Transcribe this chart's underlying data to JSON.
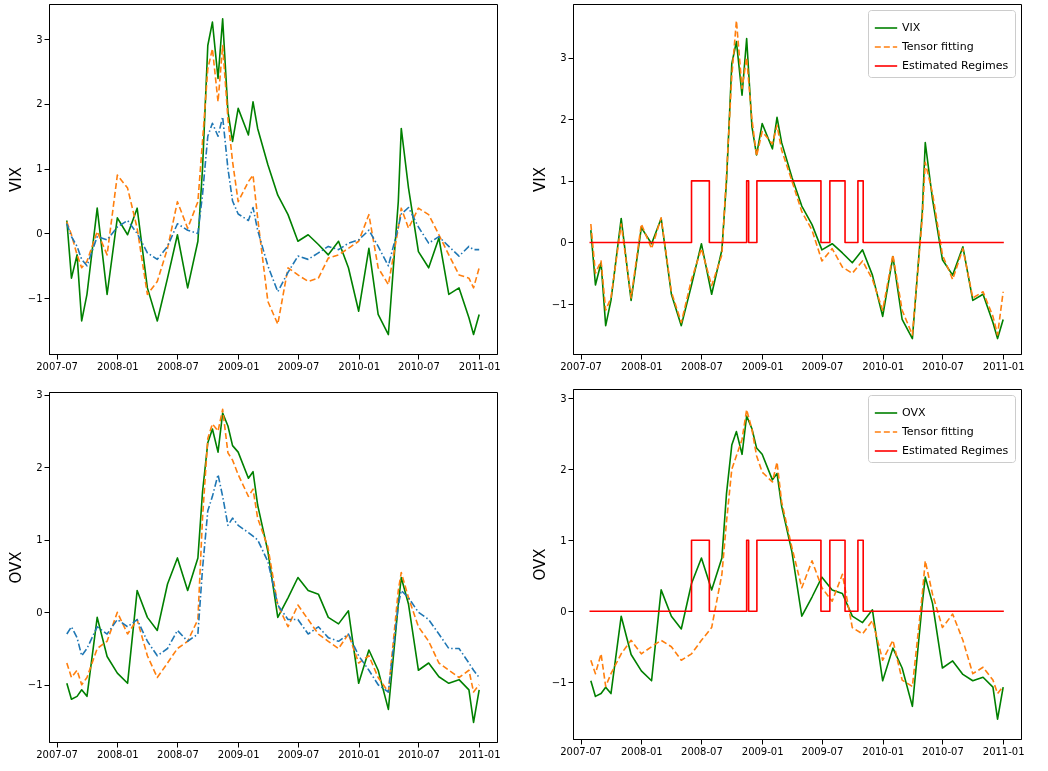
{
  "chart_data": [
    {
      "type": "line",
      "ylabel": "VIX",
      "xlim": [
        "2007-06-08",
        "2011-02-24"
      ],
      "ylim": [
        -1.86,
        3.54
      ],
      "xticks": [
        "2007-07",
        "2008-01",
        "2008-07",
        "2009-01",
        "2009-07",
        "2010-01",
        "2010-07",
        "2011-01"
      ],
      "yticks": [
        -1,
        0,
        1,
        2,
        3
      ],
      "legend": false,
      "x": [
        "2007-08-01",
        "2007-08-15",
        "2007-09-01",
        "2007-09-15",
        "2007-10-01",
        "2007-11-01",
        "2007-12-01",
        "2008-01-01",
        "2008-02-01",
        "2008-03-01",
        "2008-04-01",
        "2008-05-01",
        "2008-06-01",
        "2008-07-01",
        "2008-08-01",
        "2008-09-01",
        "2008-09-15",
        "2008-10-01",
        "2008-10-15",
        "2008-11-01",
        "2008-11-15",
        "2008-12-01",
        "2008-12-15",
        "2009-01-01",
        "2009-02-01",
        "2009-02-15",
        "2009-03-01",
        "2009-04-01",
        "2009-05-01",
        "2009-06-01",
        "2009-07-01",
        "2009-08-01",
        "2009-09-01",
        "2009-10-01",
        "2009-11-01",
        "2009-12-01",
        "2010-01-01",
        "2010-02-01",
        "2010-03-01",
        "2010-04-01",
        "2010-05-01",
        "2010-05-10",
        "2010-06-01",
        "2010-07-01",
        "2010-08-01",
        "2010-09-01",
        "2010-10-01",
        "2010-11-01",
        "2010-12-01",
        "2010-12-15",
        "2011-01-01"
      ],
      "series": [
        {
          "color": "#008000",
          "line_style": "solid",
          "values": [
            0.2,
            -0.69,
            -0.33,
            -1.35,
            -0.94,
            0.39,
            -0.94,
            0.24,
            -0.02,
            0.39,
            -0.84,
            -1.35,
            -0.69,
            -0.02,
            -0.84,
            -0.12,
            1.0,
            2.9,
            3.26,
            2.39,
            3.31,
            1.88,
            1.42,
            1.93,
            1.52,
            2.03,
            1.62,
            1.06,
            0.59,
            0.29,
            -0.12,
            -0.02,
            -0.17,
            -0.33,
            -0.12,
            -0.53,
            -1.2,
            -0.23,
            -1.25,
            -1.56,
            0.49,
            1.62,
            0.7,
            -0.28,
            -0.53,
            -0.07,
            -0.94,
            -0.84,
            -1.3,
            -1.56,
            -1.25
          ]
        },
        {
          "color": "#ff7f0e",
          "line_style": "dashed",
          "values": [
            0.18,
            -0.02,
            -0.33,
            -0.53,
            -0.43,
            0.03,
            -0.33,
            0.9,
            0.7,
            0.08,
            -0.94,
            -0.74,
            -0.23,
            0.49,
            0.08,
            0.49,
            1.42,
            2.54,
            2.85,
            2.03,
            2.9,
            1.77,
            1.11,
            0.49,
            0.8,
            0.9,
            0.24,
            -1.05,
            -1.4,
            -0.53,
            -0.64,
            -0.74,
            -0.69,
            -0.38,
            -0.33,
            -0.23,
            -0.12,
            0.29,
            -0.53,
            -0.79,
            0.08,
            0.39,
            0.08,
            0.39,
            0.29,
            -0.02,
            -0.33,
            -0.64,
            -0.69,
            -0.84,
            -0.53
          ]
        },
        {
          "color": "#1f77b4",
          "line_style": "dashdot",
          "values": [
            0.15,
            -0.05,
            -0.2,
            -0.4,
            -0.5,
            -0.05,
            -0.1,
            0.1,
            0.2,
            0,
            -0.3,
            -0.4,
            -0.2,
            0.15,
            0.05,
            0,
            0.6,
            1.5,
            1.7,
            1.5,
            1.8,
            1.0,
            0.5,
            0.3,
            0.2,
            0.4,
            0.05,
            -0.5,
            -0.9,
            -0.6,
            -0.35,
            -0.4,
            -0.3,
            -0.2,
            -0.25,
            -0.15,
            -0.1,
            0.05,
            -0.2,
            -0.5,
            0.1,
            0.3,
            0.4,
            0.1,
            -0.15,
            -0.05,
            -0.2,
            -0.35,
            -0.2,
            -0.25,
            -0.25
          ]
        }
      ]
    },
    {
      "type": "line",
      "ylabel": "VIX",
      "xlim": [
        "2007-06-08",
        "2011-02-24"
      ],
      "ylim": [
        -1.81,
        3.87
      ],
      "xticks": [
        "2007-07",
        "2008-01",
        "2008-07",
        "2009-01",
        "2009-07",
        "2010-01",
        "2010-07",
        "2011-01"
      ],
      "yticks": [
        -1,
        0,
        1,
        2,
        3
      ],
      "legend": "top right",
      "x": [
        "2007-08-01",
        "2007-08-15",
        "2007-09-01",
        "2007-09-15",
        "2007-10-01",
        "2007-11-01",
        "2007-12-01",
        "2008-01-01",
        "2008-02-01",
        "2008-03-01",
        "2008-04-01",
        "2008-05-01",
        "2008-06-01",
        "2008-07-01",
        "2008-08-01",
        "2008-09-01",
        "2008-09-15",
        "2008-10-01",
        "2008-10-15",
        "2008-11-01",
        "2008-11-15",
        "2008-12-01",
        "2008-12-15",
        "2009-01-01",
        "2009-02-01",
        "2009-02-15",
        "2009-03-01",
        "2009-04-01",
        "2009-05-01",
        "2009-06-01",
        "2009-07-01",
        "2009-08-01",
        "2009-09-01",
        "2009-10-01",
        "2009-11-01",
        "2009-12-01",
        "2010-01-01",
        "2010-02-01",
        "2010-03-01",
        "2010-04-01",
        "2010-05-01",
        "2010-05-10",
        "2010-06-01",
        "2010-07-01",
        "2010-08-01",
        "2010-09-01",
        "2010-10-01",
        "2010-11-01",
        "2010-12-01",
        "2010-12-15",
        "2011-01-01"
      ],
      "series": [
        {
          "name": "VIX",
          "color": "#008000",
          "line_style": "solid",
          "values": [
            0.2,
            -0.69,
            -0.33,
            -1.35,
            -0.94,
            0.39,
            -0.94,
            0.24,
            -0.02,
            0.39,
            -0.84,
            -1.35,
            -0.69,
            -0.02,
            -0.84,
            -0.12,
            1.0,
            2.9,
            3.26,
            2.39,
            3.31,
            1.88,
            1.42,
            1.93,
            1.52,
            2.03,
            1.62,
            1.06,
            0.59,
            0.29,
            -0.12,
            -0.02,
            -0.17,
            -0.33,
            -0.12,
            -0.53,
            -1.2,
            -0.23,
            -1.25,
            -1.56,
            0.49,
            1.62,
            0.7,
            -0.28,
            -0.53,
            -0.07,
            -0.94,
            -0.84,
            -1.3,
            -1.56,
            -1.25
          ]
        },
        {
          "name": "Tensor fitting",
          "color": "#ff7f0e",
          "line_style": "dashed",
          "values": [
            0.3,
            -0.5,
            -0.3,
            -1.1,
            -0.9,
            0.3,
            -0.9,
            0.3,
            -0.1,
            0.4,
            -0.8,
            -1.3,
            -0.6,
            -0.1,
            -0.7,
            -0.2,
            1.1,
            2.7,
            3.6,
            2.5,
            3.0,
            2.0,
            1.4,
            1.8,
            1.6,
            1.9,
            1.5,
            1.0,
            0.5,
            0.2,
            -0.3,
            -0.1,
            -0.4,
            -0.5,
            -0.3,
            -0.6,
            -1.1,
            -0.2,
            -1.1,
            -1.5,
            0.4,
            1.3,
            0.8,
            -0.2,
            -0.6,
            -0.1,
            -0.9,
            -0.8,
            -1.2,
            -1.5,
            -0.8
          ]
        },
        {
          "name": "Estimated Regimes",
          "type": "step",
          "color": "#ff0000",
          "line_style": "solid",
          "x": [
            "2007-07-28",
            "2008-06-01",
            "2008-07-25",
            "2008-11-15",
            "2008-11-21",
            "2008-12-16",
            "2009-06-28",
            "2009-07-25",
            "2009-09-09",
            "2009-10-18",
            "2009-11-03",
            "2011-01-03"
          ],
          "values": [
            0,
            1,
            0,
            1,
            0,
            1,
            0,
            1,
            0,
            1,
            0,
            0
          ]
        }
      ]
    },
    {
      "type": "line",
      "ylabel": "OVX",
      "xlim": [
        "2007-06-08",
        "2011-02-24"
      ],
      "ylim": [
        -1.79,
        3.04
      ],
      "xticks": [
        "2007-07",
        "2008-01",
        "2008-07",
        "2009-01",
        "2009-07",
        "2010-01",
        "2010-07",
        "2011-01"
      ],
      "yticks": [
        -1,
        0,
        1,
        2,
        3
      ],
      "legend": false,
      "x": [
        "2007-08-01",
        "2007-08-15",
        "2007-09-01",
        "2007-09-15",
        "2007-10-01",
        "2007-11-01",
        "2007-12-01",
        "2008-01-01",
        "2008-02-01",
        "2008-03-01",
        "2008-04-01",
        "2008-05-01",
        "2008-06-01",
        "2008-07-01",
        "2008-08-01",
        "2008-09-01",
        "2008-09-15",
        "2008-10-01",
        "2008-10-15",
        "2008-11-01",
        "2008-11-15",
        "2008-12-01",
        "2008-12-15",
        "2009-01-01",
        "2009-02-01",
        "2009-02-15",
        "2009-03-01",
        "2009-04-01",
        "2009-05-01",
        "2009-06-01",
        "2009-07-01",
        "2009-08-01",
        "2009-09-01",
        "2009-10-01",
        "2009-11-01",
        "2009-12-01",
        "2010-01-01",
        "2010-02-01",
        "2010-03-01",
        "2010-04-01",
        "2010-05-01",
        "2010-05-10",
        "2010-06-01",
        "2010-07-01",
        "2010-08-01",
        "2010-09-01",
        "2010-10-01",
        "2010-11-01",
        "2010-12-01",
        "2010-12-15",
        "2011-01-01"
      ],
      "series": [
        {
          "color": "#008000",
          "line_style": "solid",
          "values": [
            -0.98,
            -1.2,
            -1.16,
            -1.07,
            -1.16,
            -0.07,
            -0.61,
            -0.84,
            -0.98,
            0.3,
            -0.07,
            -0.25,
            0.39,
            0.75,
            0.3,
            0.75,
            1.66,
            2.34,
            2.53,
            2.21,
            2.75,
            2.57,
            2.3,
            2.21,
            1.85,
            1.94,
            1.48,
            0.84,
            -0.07,
            0.2,
            0.48,
            0.3,
            0.25,
            -0.07,
            -0.16,
            0.02,
            -0.98,
            -0.52,
            -0.8,
            -1.34,
            0.11,
            0.48,
            0.11,
            -0.8,
            -0.7,
            -0.89,
            -0.98,
            -0.93,
            -1.07,
            -1.52,
            -1.07
          ]
        },
        {
          "color": "#ff7f0e",
          "line_style": "dashed",
          "values": [
            -0.7,
            -0.9,
            -0.8,
            -1.0,
            -0.9,
            -0.5,
            -0.4,
            0.0,
            -0.3,
            -0.1,
            -0.6,
            -0.9,
            -0.7,
            -0.5,
            -0.4,
            -0.1,
            1.3,
            2.4,
            2.6,
            2.5,
            2.8,
            2.2,
            2.1,
            1.9,
            1.6,
            1.7,
            1.3,
            0.9,
            0.1,
            -0.2,
            0.1,
            -0.1,
            -0.3,
            -0.4,
            -0.5,
            -0.3,
            -0.7,
            -0.6,
            -0.9,
            -1.1,
            0.3,
            0.55,
            0.2,
            -0.2,
            -0.4,
            -0.7,
            -0.8,
            -0.9,
            -0.8,
            -1.1,
            -1.0
          ]
        },
        {
          "color": "#1f77b4",
          "line_style": "dashdot",
          "values": [
            -0.3,
            -0.2,
            -0.35,
            -0.6,
            -0.5,
            -0.2,
            -0.3,
            -0.1,
            -0.2,
            -0.1,
            -0.4,
            -0.6,
            -0.5,
            -0.25,
            -0.4,
            -0.3,
            0.6,
            1.4,
            1.6,
            1.9,
            1.6,
            1.2,
            1.3,
            1.2,
            1.1,
            1.05,
            1.0,
            0.7,
            0.1,
            -0.1,
            -0.1,
            -0.3,
            -0.2,
            -0.35,
            -0.4,
            -0.3,
            -0.6,
            -0.8,
            -1.0,
            -1.1,
            0.1,
            0.3,
            0.2,
            0.0,
            -0.1,
            -0.3,
            -0.5,
            -0.5,
            -0.7,
            -0.8,
            -0.9
          ]
        }
      ]
    },
    {
      "type": "line",
      "ylabel": "OVX",
      "xlim": [
        "2007-06-08",
        "2011-02-24"
      ],
      "ylim": [
        -1.8,
        3.13
      ],
      "xticks": [
        "2007-07",
        "2008-01",
        "2008-07",
        "2009-01",
        "2009-07",
        "2010-01",
        "2010-07",
        "2011-01"
      ],
      "yticks": [
        -1,
        0,
        1,
        2,
        3
      ],
      "legend": "top right",
      "x": [
        "2007-08-01",
        "2007-08-15",
        "2007-09-01",
        "2007-09-15",
        "2007-10-01",
        "2007-11-01",
        "2007-12-01",
        "2008-01-01",
        "2008-02-01",
        "2008-03-01",
        "2008-04-01",
        "2008-05-01",
        "2008-06-01",
        "2008-07-01",
        "2008-08-01",
        "2008-09-01",
        "2008-09-15",
        "2008-10-01",
        "2008-10-15",
        "2008-11-01",
        "2008-11-15",
        "2008-12-01",
        "2008-12-15",
        "2009-01-01",
        "2009-02-01",
        "2009-02-15",
        "2009-03-01",
        "2009-04-01",
        "2009-05-01",
        "2009-06-01",
        "2009-07-01",
        "2009-08-01",
        "2009-09-01",
        "2009-10-01",
        "2009-11-01",
        "2009-12-01",
        "2010-01-01",
        "2010-02-01",
        "2010-03-01",
        "2010-04-01",
        "2010-05-01",
        "2010-05-10",
        "2010-06-01",
        "2010-07-01",
        "2010-08-01",
        "2010-09-01",
        "2010-10-01",
        "2010-11-01",
        "2010-12-01",
        "2010-12-15",
        "2011-01-01"
      ],
      "series": [
        {
          "name": "OVX",
          "color": "#008000",
          "line_style": "solid",
          "values": [
            -0.98,
            -1.2,
            -1.16,
            -1.07,
            -1.16,
            -0.07,
            -0.61,
            -0.84,
            -0.98,
            0.3,
            -0.07,
            -0.25,
            0.39,
            0.75,
            0.3,
            0.75,
            1.66,
            2.34,
            2.53,
            2.21,
            2.75,
            2.57,
            2.3,
            2.21,
            1.85,
            1.94,
            1.48,
            0.84,
            -0.07,
            0.2,
            0.48,
            0.3,
            0.25,
            -0.07,
            -0.16,
            0.02,
            -0.98,
            -0.52,
            -0.8,
            -1.34,
            0.11,
            0.48,
            0.11,
            -0.8,
            -0.7,
            -0.89,
            -0.98,
            -0.93,
            -1.07,
            -1.52,
            -1.07
          ]
        },
        {
          "name": "Tensor fitting",
          "color": "#ff7f0e",
          "line_style": "dashed",
          "values": [
            -0.69,
            -0.88,
            -0.6,
            -1.06,
            -0.88,
            -0.6,
            -0.41,
            -0.6,
            -0.5,
            -0.41,
            -0.5,
            -0.69,
            -0.6,
            -0.41,
            -0.23,
            0.52,
            1.26,
            2.0,
            2.19,
            2.42,
            2.84,
            2.56,
            2.19,
            1.96,
            1.82,
            2.1,
            1.54,
            0.9,
            0.33,
            0.71,
            0.33,
            0.14,
            0.52,
            -0.23,
            -0.32,
            -0.13,
            -0.69,
            -0.41,
            -0.97,
            -1.06,
            0.24,
            0.71,
            0.24,
            -0.23,
            -0.04,
            -0.41,
            -0.88,
            -0.79,
            -0.97,
            -1.16,
            -1.06
          ]
        },
        {
          "name": "Estimated Regimes",
          "type": "step",
          "color": "#ff0000",
          "line_style": "solid",
          "x": [
            "2007-07-28",
            "2008-06-01",
            "2008-07-25",
            "2008-11-15",
            "2008-11-21",
            "2008-12-16",
            "2009-06-28",
            "2009-07-25",
            "2009-09-09",
            "2009-10-18",
            "2009-11-03",
            "2011-01-03"
          ],
          "values": [
            0,
            1,
            0,
            1,
            0,
            1,
            0,
            1,
            0,
            1,
            0,
            0
          ]
        }
      ]
    }
  ]
}
